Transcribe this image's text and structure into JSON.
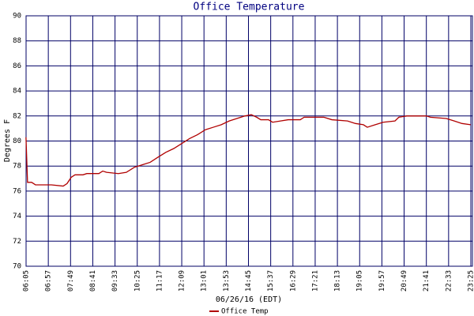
{
  "chart_data": {
    "type": "line",
    "title": "Office Temperature",
    "y_label": "Degrees F",
    "x_label": "06/26/16 (EDT)",
    "x": [
      6.08,
      6.14,
      6.3,
      6.45,
      7.07,
      7.53,
      7.68,
      7.84,
      7.99,
      8.3,
      8.45,
      8.92,
      9.07,
      9.22,
      9.68,
      9.99,
      10.3,
      10.61,
      10.92,
      11.22,
      11.53,
      11.84,
      12.15,
      12.46,
      12.76,
      13.07,
      13.38,
      13.69,
      14.0,
      14.3,
      14.61,
      14.86,
      15.07,
      15.23,
      15.53,
      15.69,
      16.0,
      16.3,
      16.77,
      16.92,
      17.69,
      18.0,
      18.61,
      18.92,
      19.23,
      19.38,
      19.69,
      20.0,
      20.46,
      20.61,
      20.92,
      21.69,
      21.84,
      22.46,
      22.77,
      23.07,
      23.41
    ],
    "series": [
      {
        "name": "Office Temp",
        "color": "#b00000",
        "values": [
          80.3,
          76.7,
          76.7,
          76.5,
          76.5,
          76.4,
          76.6,
          77.1,
          77.3,
          77.3,
          77.4,
          77.4,
          77.6,
          77.5,
          77.4,
          77.5,
          77.9,
          78.1,
          78.3,
          78.7,
          79.1,
          79.4,
          79.8,
          80.2,
          80.5,
          80.9,
          81.1,
          81.3,
          81.6,
          81.8,
          82.0,
          82.1,
          81.9,
          81.7,
          81.7,
          81.5,
          81.6,
          81.7,
          81.7,
          81.9,
          81.9,
          81.7,
          81.6,
          81.4,
          81.3,
          81.1,
          81.3,
          81.5,
          81.6,
          81.9,
          82.0,
          82.0,
          81.9,
          81.8,
          81.6,
          81.4,
          81.3
        ]
      }
    ],
    "xlim": [
      6.0833,
      23.4167
    ],
    "xticks": [
      {
        "value": 6.0833,
        "label": "06:05"
      },
      {
        "value": 6.95,
        "label": "06:57"
      },
      {
        "value": 7.8167,
        "label": "07:49"
      },
      {
        "value": 8.6833,
        "label": "08:41"
      },
      {
        "value": 9.55,
        "label": "09:33"
      },
      {
        "value": 10.4167,
        "label": "10:25"
      },
      {
        "value": 11.2833,
        "label": "11:17"
      },
      {
        "value": 12.15,
        "label": "12:09"
      },
      {
        "value": 13.0167,
        "label": "13:01"
      },
      {
        "value": 13.8833,
        "label": "13:53"
      },
      {
        "value": 14.75,
        "label": "14:45"
      },
      {
        "value": 15.6167,
        "label": "15:37"
      },
      {
        "value": 16.4833,
        "label": "16:29"
      },
      {
        "value": 17.35,
        "label": "17:21"
      },
      {
        "value": 18.2167,
        "label": "18:13"
      },
      {
        "value": 19.0833,
        "label": "19:05"
      },
      {
        "value": 19.95,
        "label": "19:57"
      },
      {
        "value": 20.8167,
        "label": "20:49"
      },
      {
        "value": 21.6833,
        "label": "21:41"
      },
      {
        "value": 22.55,
        "label": "22:33"
      },
      {
        "value": 23.4167,
        "label": "23:25"
      }
    ],
    "ylim": [
      70,
      90
    ],
    "yticks": [
      70,
      72,
      74,
      76,
      78,
      80,
      82,
      84,
      86,
      88,
      90
    ],
    "grid": true,
    "grid_color": "#000066"
  }
}
